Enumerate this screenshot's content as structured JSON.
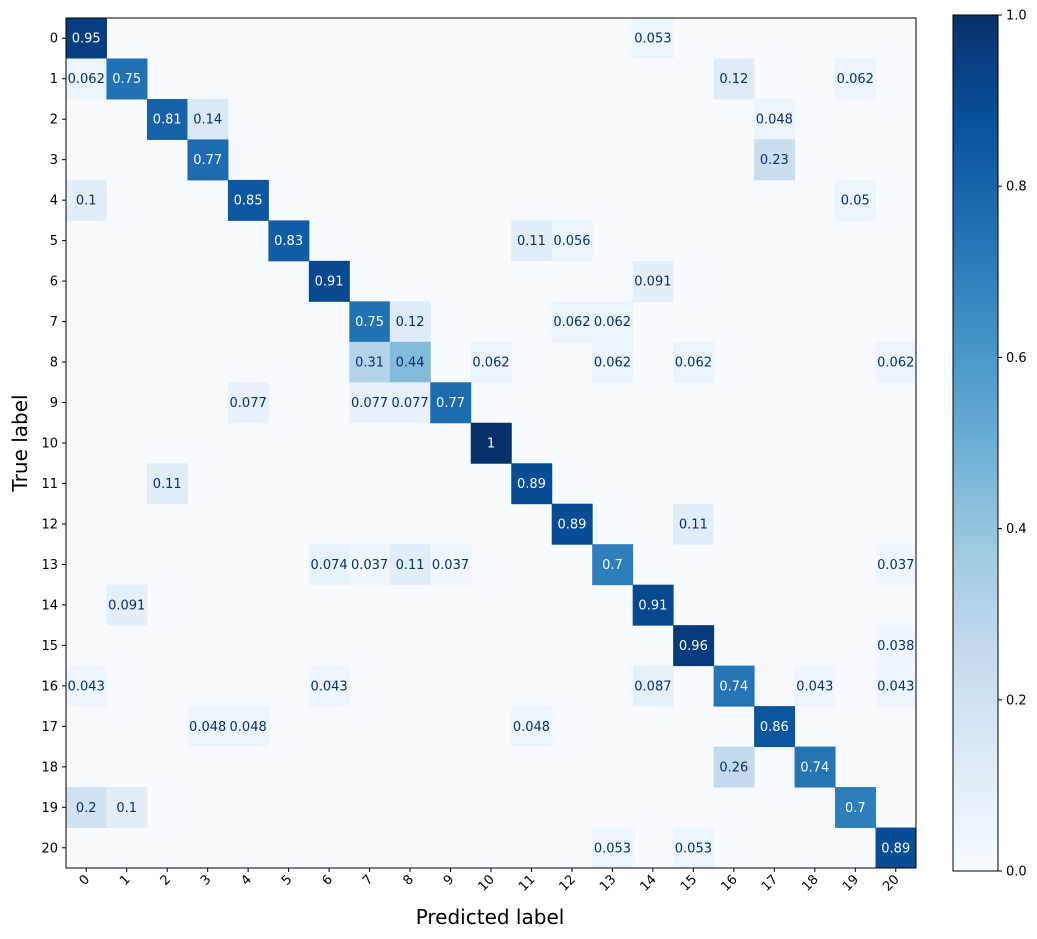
{
  "chart_data": {
    "type": "heatmap",
    "title": "",
    "xlabel": "Predicted label",
    "ylabel": "True label",
    "x_categories": [
      "0",
      "1",
      "2",
      "3",
      "4",
      "5",
      "6",
      "7",
      "8",
      "9",
      "10",
      "11",
      "12",
      "13",
      "14",
      "15",
      "16",
      "17",
      "18",
      "19",
      "20"
    ],
    "y_categories": [
      "0",
      "1",
      "2",
      "3",
      "4",
      "5",
      "6",
      "7",
      "8",
      "9",
      "10",
      "11",
      "12",
      "13",
      "14",
      "15",
      "16",
      "17",
      "18",
      "19",
      "20"
    ],
    "colormap": "Blues",
    "vmin": 0.0,
    "vmax": 1.0,
    "colorbar_ticks": [
      "0.0",
      "0.2",
      "0.4",
      "0.6",
      "0.8",
      "1.0"
    ],
    "cells": [
      {
        "row": 0,
        "col": 0,
        "value": 0.95,
        "label": "0.95"
      },
      {
        "row": 0,
        "col": 14,
        "value": 0.053,
        "label": "0.053"
      },
      {
        "row": 1,
        "col": 0,
        "value": 0.062,
        "label": "0.062"
      },
      {
        "row": 1,
        "col": 1,
        "value": 0.75,
        "label": "0.75"
      },
      {
        "row": 1,
        "col": 16,
        "value": 0.12,
        "label": "0.12"
      },
      {
        "row": 1,
        "col": 19,
        "value": 0.062,
        "label": "0.062"
      },
      {
        "row": 2,
        "col": 2,
        "value": 0.81,
        "label": "0.81"
      },
      {
        "row": 2,
        "col": 3,
        "value": 0.14,
        "label": "0.14"
      },
      {
        "row": 2,
        "col": 17,
        "value": 0.048,
        "label": "0.048"
      },
      {
        "row": 3,
        "col": 3,
        "value": 0.77,
        "label": "0.77"
      },
      {
        "row": 3,
        "col": 17,
        "value": 0.23,
        "label": "0.23"
      },
      {
        "row": 4,
        "col": 0,
        "value": 0.1,
        "label": "0.1"
      },
      {
        "row": 4,
        "col": 4,
        "value": 0.85,
        "label": "0.85"
      },
      {
        "row": 4,
        "col": 19,
        "value": 0.05,
        "label": "0.05"
      },
      {
        "row": 5,
        "col": 5,
        "value": 0.83,
        "label": "0.83"
      },
      {
        "row": 5,
        "col": 11,
        "value": 0.11,
        "label": "0.11"
      },
      {
        "row": 5,
        "col": 12,
        "value": 0.056,
        "label": "0.056"
      },
      {
        "row": 6,
        "col": 6,
        "value": 0.91,
        "label": "0.91"
      },
      {
        "row": 6,
        "col": 14,
        "value": 0.091,
        "label": "0.091"
      },
      {
        "row": 7,
        "col": 7,
        "value": 0.75,
        "label": "0.75"
      },
      {
        "row": 7,
        "col": 8,
        "value": 0.12,
        "label": "0.12"
      },
      {
        "row": 7,
        "col": 12,
        "value": 0.062,
        "label": "0.062"
      },
      {
        "row": 7,
        "col": 13,
        "value": 0.062,
        "label": "0.062"
      },
      {
        "row": 8,
        "col": 7,
        "value": 0.31,
        "label": "0.31"
      },
      {
        "row": 8,
        "col": 8,
        "value": 0.44,
        "label": "0.44"
      },
      {
        "row": 8,
        "col": 10,
        "value": 0.062,
        "label": "0.062"
      },
      {
        "row": 8,
        "col": 13,
        "value": 0.062,
        "label": "0.062"
      },
      {
        "row": 8,
        "col": 15,
        "value": 0.062,
        "label": "0.062"
      },
      {
        "row": 8,
        "col": 20,
        "value": 0.062,
        "label": "0.062"
      },
      {
        "row": 9,
        "col": 4,
        "value": 0.077,
        "label": "0.077"
      },
      {
        "row": 9,
        "col": 7,
        "value": 0.077,
        "label": "0.077"
      },
      {
        "row": 9,
        "col": 8,
        "value": 0.077,
        "label": "0.077"
      },
      {
        "row": 9,
        "col": 9,
        "value": 0.77,
        "label": "0.77"
      },
      {
        "row": 10,
        "col": 10,
        "value": 1.0,
        "label": "1"
      },
      {
        "row": 11,
        "col": 2,
        "value": 0.11,
        "label": "0.11"
      },
      {
        "row": 11,
        "col": 11,
        "value": 0.89,
        "label": "0.89"
      },
      {
        "row": 12,
        "col": 12,
        "value": 0.89,
        "label": "0.89"
      },
      {
        "row": 12,
        "col": 15,
        "value": 0.11,
        "label": "0.11"
      },
      {
        "row": 13,
        "col": 6,
        "value": 0.074,
        "label": "0.074"
      },
      {
        "row": 13,
        "col": 7,
        "value": 0.037,
        "label": "0.037"
      },
      {
        "row": 13,
        "col": 8,
        "value": 0.11,
        "label": "0.11"
      },
      {
        "row": 13,
        "col": 9,
        "value": 0.037,
        "label": "0.037"
      },
      {
        "row": 13,
        "col": 13,
        "value": 0.7,
        "label": "0.7"
      },
      {
        "row": 13,
        "col": 20,
        "value": 0.037,
        "label": "0.037"
      },
      {
        "row": 14,
        "col": 1,
        "value": 0.091,
        "label": "0.091"
      },
      {
        "row": 14,
        "col": 14,
        "value": 0.91,
        "label": "0.91"
      },
      {
        "row": 15,
        "col": 15,
        "value": 0.96,
        "label": "0.96"
      },
      {
        "row": 15,
        "col": 20,
        "value": 0.038,
        "label": "0.038"
      },
      {
        "row": 16,
        "col": 0,
        "value": 0.043,
        "label": "0.043"
      },
      {
        "row": 16,
        "col": 6,
        "value": 0.043,
        "label": "0.043"
      },
      {
        "row": 16,
        "col": 14,
        "value": 0.087,
        "label": "0.087"
      },
      {
        "row": 16,
        "col": 16,
        "value": 0.74,
        "label": "0.74"
      },
      {
        "row": 16,
        "col": 18,
        "value": 0.043,
        "label": "0.043"
      },
      {
        "row": 16,
        "col": 20,
        "value": 0.043,
        "label": "0.043"
      },
      {
        "row": 17,
        "col": 3,
        "value": 0.048,
        "label": "0.048"
      },
      {
        "row": 17,
        "col": 4,
        "value": 0.048,
        "label": "0.048"
      },
      {
        "row": 17,
        "col": 11,
        "value": 0.048,
        "label": "0.048"
      },
      {
        "row": 17,
        "col": 17,
        "value": 0.86,
        "label": "0.86"
      },
      {
        "row": 18,
        "col": 16,
        "value": 0.26,
        "label": "0.26"
      },
      {
        "row": 18,
        "col": 18,
        "value": 0.74,
        "label": "0.74"
      },
      {
        "row": 19,
        "col": 0,
        "value": 0.2,
        "label": "0.2"
      },
      {
        "row": 19,
        "col": 1,
        "value": 0.1,
        "label": "0.1"
      },
      {
        "row": 19,
        "col": 19,
        "value": 0.7,
        "label": "0.7"
      },
      {
        "row": 20,
        "col": 13,
        "value": 0.053,
        "label": "0.053"
      },
      {
        "row": 20,
        "col": 15,
        "value": 0.053,
        "label": "0.053"
      },
      {
        "row": 20,
        "col": 20,
        "value": 0.89,
        "label": "0.89"
      }
    ]
  }
}
